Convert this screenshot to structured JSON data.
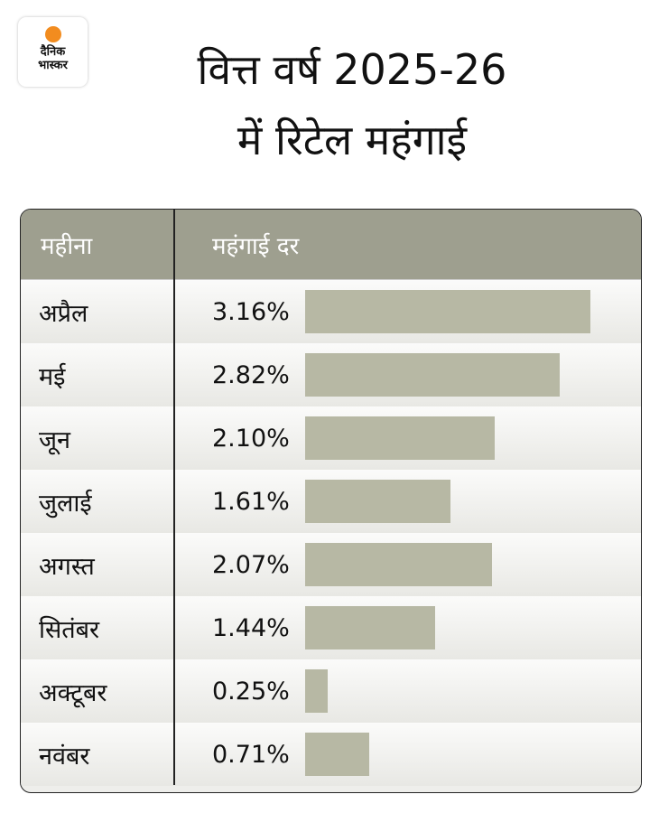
{
  "logo": {
    "line1": "दैनिक",
    "line2": "भास्कर"
  },
  "title": {
    "line1": "वित्त वर्ष 2025-26",
    "line2": "में रिटेल महंगाई"
  },
  "chart_data": {
    "type": "bar",
    "title": "वित्त वर्ष 2025-26 में रिटेल महंगाई",
    "headers": [
      "महीना",
      "महंगाई दर"
    ],
    "categories": [
      "अप्रैल",
      "मई",
      "जून",
      "जुलाई",
      "अगस्त",
      "सितंबर",
      "अक्टूबर",
      "नवंबर"
    ],
    "values": [
      3.16,
      2.82,
      2.1,
      1.61,
      2.07,
      1.44,
      0.25,
      0.71
    ],
    "labels": [
      "3.16%",
      "2.82%",
      "2.10%",
      "1.61%",
      "2.07%",
      "1.44%",
      "0.25%",
      "0.71%"
    ],
    "unit": "%",
    "bar_color": "#b7b8a4",
    "header_color": "#9e9f8f"
  }
}
